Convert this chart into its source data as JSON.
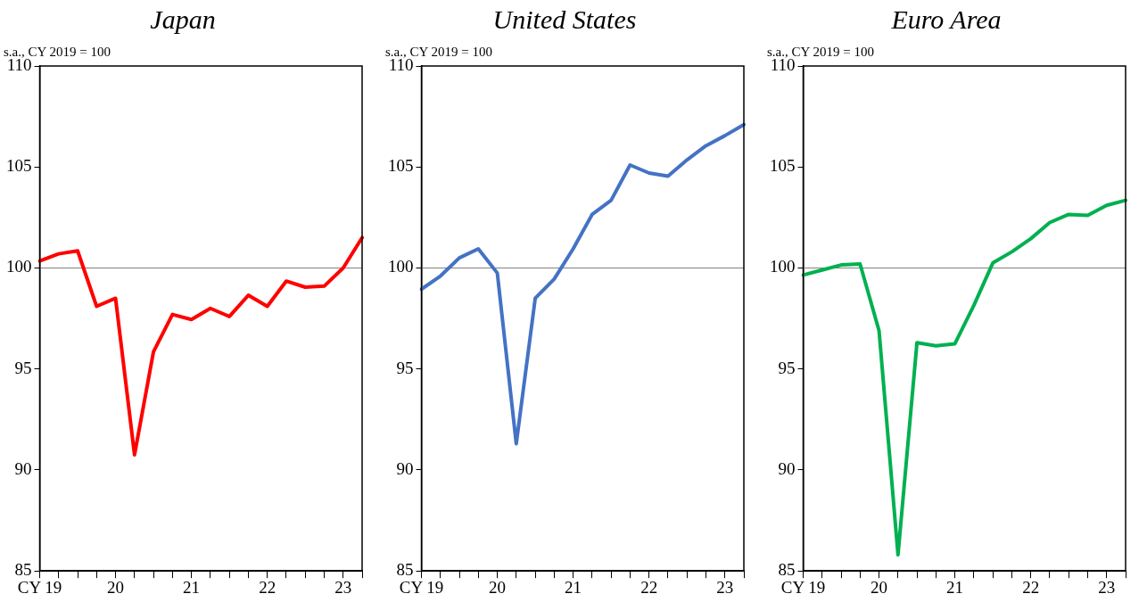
{
  "chart_data": [
    {
      "type": "line",
      "title": "Japan",
      "subtitle": "s.a., CY 2019 = 100",
      "categories": [
        "CY 19",
        null,
        null,
        null,
        "20",
        null,
        null,
        null,
        "21",
        null,
        null,
        null,
        "22",
        null,
        null,
        null,
        "23",
        null
      ],
      "ylim": [
        85,
        110
      ],
      "yticks": [
        85,
        90,
        95,
        100,
        105,
        110
      ],
      "grid": false,
      "legend": false,
      "marker": "none",
      "line_style": "solid",
      "ref_lines": [
        {
          "axis": "y",
          "value": 100,
          "color": "#808080"
        }
      ],
      "series": [
        {
          "color": "#ff0000",
          "values": [
            100.35,
            100.7,
            100.85,
            98.1,
            98.5,
            90.75,
            95.85,
            97.7,
            97.45,
            98.0,
            97.6,
            98.65,
            98.1,
            99.35,
            99.05,
            99.1,
            100.0,
            101.5
          ]
        }
      ]
    },
    {
      "type": "line",
      "title": "United States",
      "subtitle": "s.a., CY 2019 = 100",
      "categories": [
        "CY 19",
        null,
        null,
        null,
        "20",
        null,
        null,
        null,
        "21",
        null,
        null,
        null,
        "22",
        null,
        null,
        null,
        "23",
        null
      ],
      "ylim": [
        85,
        110
      ],
      "yticks": [
        85,
        90,
        95,
        100,
        105,
        110
      ],
      "grid": false,
      "legend": false,
      "marker": "none",
      "line_style": "solid",
      "ref_lines": [
        {
          "axis": "y",
          "value": 100,
          "color": "#808080"
        }
      ],
      "series": [
        {
          "color": "#4472c4",
          "values": [
            98.95,
            99.6,
            100.5,
            100.95,
            99.75,
            91.3,
            98.5,
            99.45,
            100.95,
            102.65,
            103.35,
            105.1,
            104.7,
            104.55,
            105.35,
            106.05,
            106.55,
            107.1
          ]
        }
      ]
    },
    {
      "type": "line",
      "title": "Euro Area",
      "subtitle": "s.a., CY 2019 = 100",
      "categories": [
        "CY 19",
        null,
        null,
        null,
        "20",
        null,
        null,
        null,
        "21",
        null,
        null,
        null,
        "22",
        null,
        null,
        null,
        "23",
        null
      ],
      "ylim": [
        85,
        110
      ],
      "yticks": [
        85,
        90,
        95,
        100,
        105,
        110
      ],
      "grid": false,
      "legend": false,
      "marker": "none",
      "line_style": "solid",
      "ref_lines": [
        {
          "axis": "y",
          "value": 100,
          "color": "#808080"
        }
      ],
      "series": [
        {
          "color": "#00b050",
          "values": [
            99.65,
            99.9,
            100.15,
            100.2,
            96.9,
            85.8,
            96.3,
            96.15,
            96.25,
            98.15,
            100.25,
            100.8,
            101.45,
            102.25,
            102.65,
            102.6,
            103.1,
            103.35
          ]
        }
      ]
    }
  ]
}
